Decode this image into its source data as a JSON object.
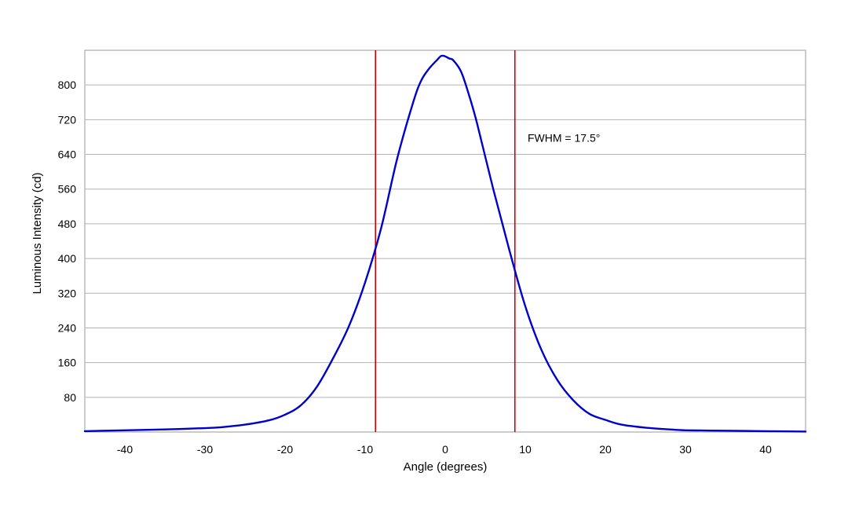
{
  "chart_data": {
    "type": "line",
    "title": "",
    "xlabel": "Angle (degrees)",
    "ylabel": "Luminous Intensity (cd)",
    "xlim": [
      -45,
      45
    ],
    "ylim": [
      0,
      880
    ],
    "xticks": [
      -40,
      -30,
      -20,
      -10,
      0,
      10,
      20,
      30,
      40
    ],
    "yticks": [
      80,
      160,
      240,
      320,
      400,
      480,
      560,
      640,
      720,
      800
    ],
    "xtick_labels": [
      "-40",
      "-30",
      "-20",
      "-10",
      "0",
      "10",
      "20",
      "30",
      "40"
    ],
    "ytick_labels": [
      "80",
      "160",
      "240",
      "320",
      "400",
      "480",
      "560",
      "640",
      "720",
      "800"
    ],
    "grid": {
      "horizontal": true,
      "vertical": false
    },
    "series": [
      {
        "color": "#0000cc",
        "x": [
          -45,
          -40,
          -35,
          -30,
          -28,
          -25,
          -22,
          -20,
          -18,
          -16,
          -14,
          -12,
          -10,
          -8,
          -6,
          -4,
          -3,
          -2,
          -1,
          -0.5,
          0,
          0.5,
          1,
          2,
          3,
          4,
          6,
          8,
          10,
          12,
          14,
          16,
          18,
          20,
          22,
          25,
          28,
          30,
          35,
          40,
          45
        ],
        "y": [
          2,
          4,
          6,
          9,
          11,
          17,
          27,
          40,
          62,
          105,
          170,
          245,
          345,
          470,
          630,
          760,
          810,
          838,
          858,
          867,
          866,
          861,
          857,
          830,
          775,
          710,
          560,
          420,
          290,
          190,
          120,
          73,
          42,
          28,
          17,
          10,
          6,
          4,
          3,
          2,
          1
        ]
      }
    ],
    "vlines": [
      {
        "x": -8.7,
        "color": "#cc0000"
      },
      {
        "x": 8.7,
        "color": "#cc0000"
      }
    ],
    "annotations": [
      {
        "text": "FWHM = 17.5°",
        "x": 10,
        "y": 678
      }
    ]
  }
}
